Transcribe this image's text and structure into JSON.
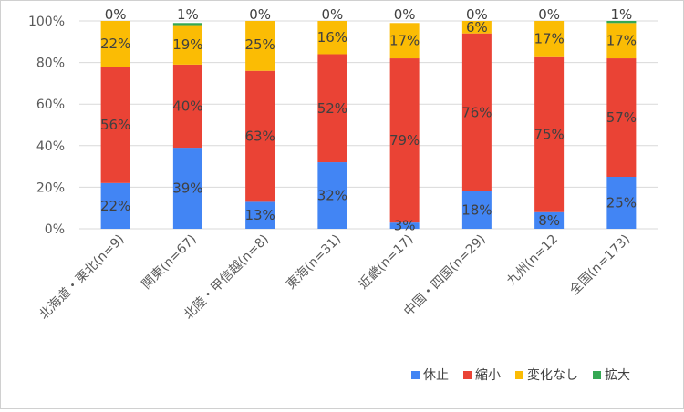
{
  "chart_data": {
    "type": "bar",
    "stacked": true,
    "percent": true,
    "categories": [
      "北海道・東北(n=9)",
      "関東(n=67)",
      "北陸・甲信越(n=8)",
      "東海(n=31)",
      "近畿(n=17)",
      "中国・四国(n=29)",
      "九州(n=12",
      "全国(n=173)"
    ],
    "series": [
      {
        "name": "休止",
        "color": "#4285f4",
        "values": [
          22,
          39,
          13,
          32,
          3,
          18,
          8,
          25
        ],
        "labels": [
          "22%",
          "39%",
          "13%",
          "32%",
          "3%",
          "18%",
          "8%",
          "25%"
        ]
      },
      {
        "name": "縮小",
        "color": "#ea4335",
        "values": [
          56,
          40,
          63,
          52,
          79,
          76,
          75,
          57
        ],
        "labels": [
          "56%",
          "40%",
          "63%",
          "52%",
          "79%",
          "76%",
          "75%",
          "57%"
        ]
      },
      {
        "name": "変化なし",
        "color": "#fbbc04",
        "values": [
          22,
          19,
          25,
          16,
          17,
          6,
          17,
          17
        ],
        "labels": [
          "22%",
          "19%",
          "25%",
          "16%",
          "17%",
          "6%",
          "17%",
          "17%"
        ]
      },
      {
        "name": "拡大",
        "color": "#34a853",
        "values": [
          0,
          1,
          0,
          0,
          0,
          0,
          0,
          1
        ],
        "labels": [
          "0%",
          "1%",
          "0%",
          "0%",
          "0%",
          "0%",
          "0%",
          "1%"
        ]
      }
    ],
    "y_ticks": [
      "0%",
      "20%",
      "40%",
      "60%",
      "80%",
      "100%"
    ],
    "ylim": [
      0,
      100
    ],
    "grid": true,
    "legend_position": "bottom-right"
  }
}
